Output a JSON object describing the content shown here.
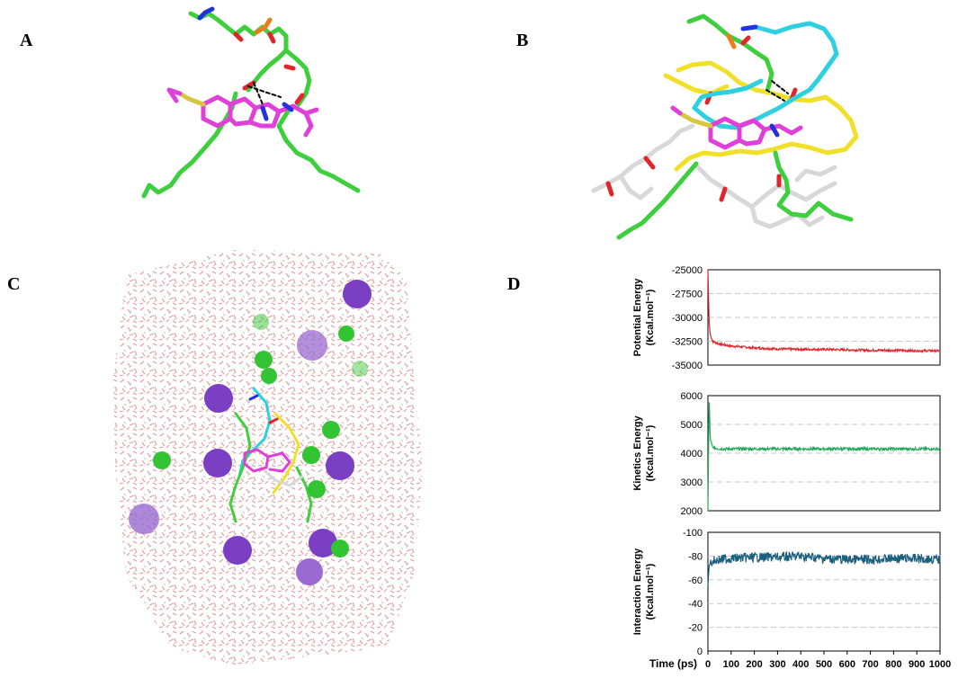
{
  "panels": {
    "a": "A",
    "b": "B",
    "c": "C",
    "d": "D"
  },
  "colors": {
    "carbon_green": "#3ecf3e",
    "ligand_magenta": "#e040d8",
    "oxygen_red": "#e0262b",
    "nitrogen_blue": "#2233dd",
    "phosphorus_orange": "#e87f1a",
    "sulfur_yellow": "#d8c640",
    "peptide_cyan": "#2ed0e0",
    "peptide_yellow": "#f0e02a",
    "lipid_white": "#d8d8d8",
    "ion_purple": "#7a3fc2",
    "ion_green": "#33c433",
    "potential_red": "#e0262b",
    "kinetic_green": "#1fa85a",
    "interaction_teal": "#1b5f7e"
  },
  "chart_data": [
    {
      "type": "line",
      "ylabel": "Potential Energy\n(Kcal.mol⁻¹)",
      "ylim": [
        -35000,
        -25000
      ],
      "yticks": [
        "-25000",
        "-27500",
        "-30000",
        "-32500",
        "-35000"
      ],
      "color": "#e0262b",
      "x": [
        0,
        5,
        10,
        20,
        50,
        100,
        200,
        300,
        400,
        500,
        600,
        700,
        800,
        900,
        1000
      ],
      "values": [
        -25000,
        -30500,
        -31800,
        -32500,
        -32800,
        -33000,
        -33200,
        -33300,
        -33350,
        -33350,
        -33400,
        -33450,
        -33450,
        -33500,
        -33500
      ]
    },
    {
      "type": "line",
      "ylabel": "Kinetics Energy\n(Kcal.mol⁻¹)",
      "ylim": [
        2000,
        6000
      ],
      "yticks": [
        "6000",
        "5000",
        "4000",
        "3000",
        "2000"
      ],
      "color": "#1fa85a",
      "x": [
        0,
        5,
        10,
        20,
        50,
        100,
        200,
        300,
        400,
        500,
        600,
        700,
        800,
        900,
        1000
      ],
      "values": [
        2000,
        6000,
        4500,
        4200,
        4150,
        4150,
        4150,
        4150,
        4150,
        4150,
        4150,
        4150,
        4150,
        4150,
        4150
      ]
    },
    {
      "type": "line",
      "ylabel": "Interaction Energy\n(Kcal.mol⁻¹)",
      "ylim": [
        0,
        -100
      ],
      "yticks": [
        "-100",
        "-80",
        "-60",
        "-40",
        "-20",
        "0"
      ],
      "color": "#1b5f7e",
      "xlabel": "Time (ps)",
      "xticks": [
        "0",
        "100",
        "200",
        "300",
        "400",
        "500",
        "600",
        "700",
        "800",
        "900",
        "1000"
      ],
      "x": [
        0,
        5,
        20,
        50,
        100,
        200,
        300,
        400,
        500,
        600,
        700,
        800,
        900,
        1000
      ],
      "values": [
        -55,
        -72,
        -76,
        -77,
        -78,
        -79,
        -79,
        -80,
        -78,
        -77,
        -77,
        -78,
        -78,
        -77
      ]
    }
  ]
}
